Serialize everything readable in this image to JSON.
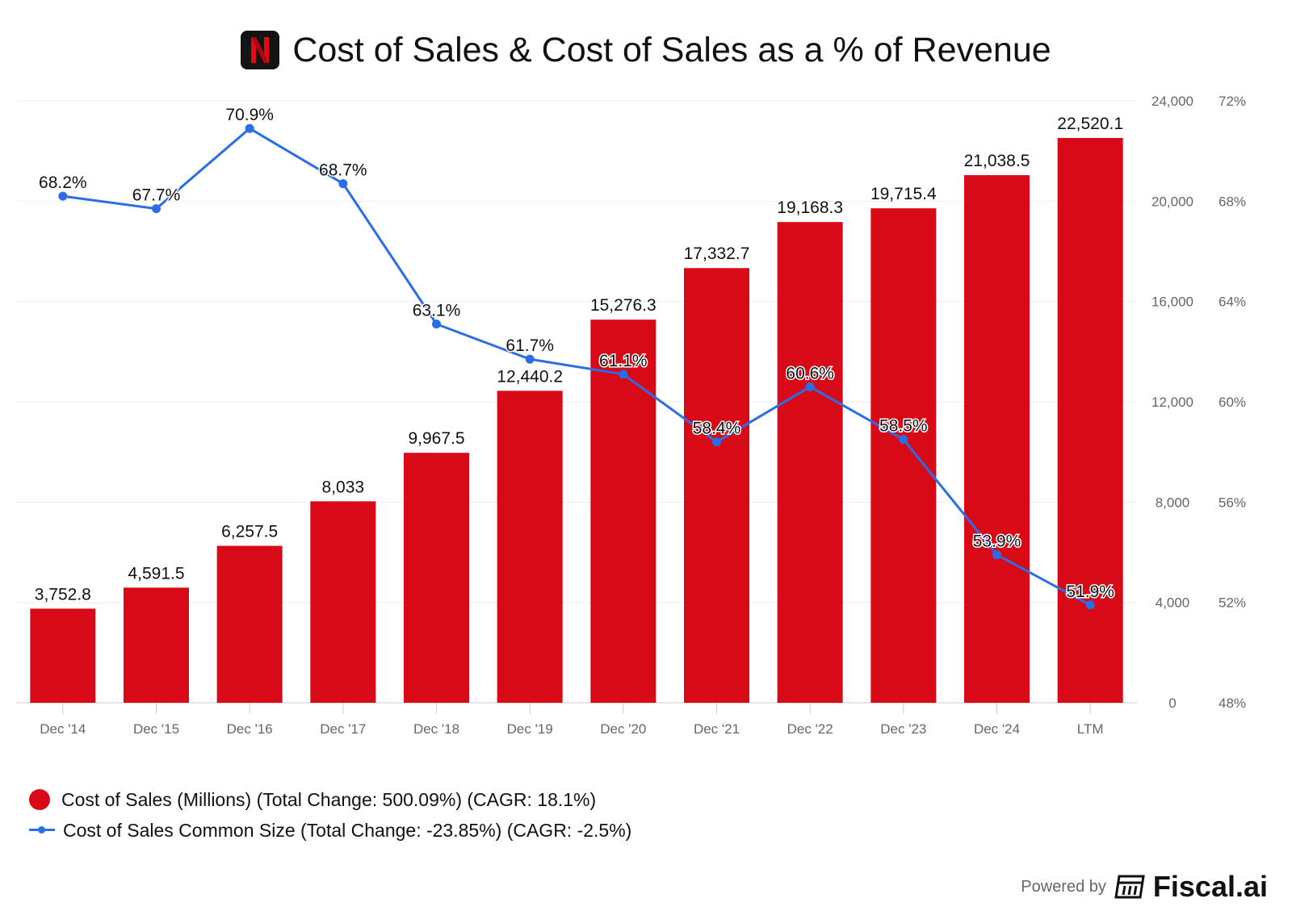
{
  "header": {
    "title": "Cost of Sales & Cost of Sales as a % of Revenue",
    "logo_letter": "N"
  },
  "colors": {
    "bar": "#d90a17",
    "line": "#2b6de6",
    "grid": "#eeeeee",
    "axis": "#cccccc",
    "tick_text": "#666666"
  },
  "chart_data": {
    "type": "bar+line",
    "title": "Cost of Sales & Cost of Sales as a % of Revenue",
    "categories": [
      "Dec '14",
      "Dec '15",
      "Dec '16",
      "Dec '17",
      "Dec '18",
      "Dec '19",
      "Dec '20",
      "Dec '21",
      "Dec '22",
      "Dec '23",
      "Dec '24",
      "LTM"
    ],
    "series": [
      {
        "name": "Cost of Sales (Millions)",
        "type": "bar",
        "axis": "left",
        "values": [
          3752.8,
          4591.5,
          6257.5,
          8033,
          9967.5,
          12440.2,
          15276.3,
          17332.7,
          19168.3,
          19715.4,
          21038.5,
          22520.1
        ],
        "labels": [
          "3,752.8",
          "4,591.5",
          "6,257.5",
          "8,033",
          "9,967.5",
          "12,440.2",
          "15,276.3",
          "17,332.7",
          "19,168.3",
          "19,715.4",
          "21,038.5",
          "22,520.1"
        ]
      },
      {
        "name": "Cost of Sales Common Size",
        "type": "line",
        "axis": "right",
        "values": [
          68.2,
          67.7,
          70.9,
          68.7,
          63.1,
          61.7,
          61.1,
          58.4,
          60.6,
          58.5,
          53.9,
          51.9
        ],
        "labels": [
          "68.2%",
          "67.7%",
          "70.9%",
          "68.7%",
          "63.1%",
          "61.7%",
          "61.1%",
          "58.4%",
          "60.6%",
          "58.5%",
          "53.9%",
          "51.9%"
        ]
      }
    ],
    "y_left": {
      "range": [
        0,
        24000
      ],
      "ticks": [
        0,
        4000,
        8000,
        12000,
        16000,
        20000,
        24000
      ],
      "tick_labels": [
        "0",
        "4,000",
        "8,000",
        "12,000",
        "16,000",
        "20,000",
        "24,000"
      ]
    },
    "y_right": {
      "range": [
        48,
        72
      ],
      "ticks": [
        48,
        52,
        56,
        60,
        64,
        68,
        72
      ],
      "tick_labels": [
        "48%",
        "52%",
        "56%",
        "60%",
        "64%",
        "68%",
        "72%"
      ]
    },
    "grid": true,
    "legend_position": "bottom-left"
  },
  "legend": {
    "items": [
      {
        "label": "Cost of Sales (Millions) (Total Change: 500.09%) (CAGR: 18.1%)"
      },
      {
        "label": "Cost of Sales Common Size (Total Change: -23.85%) (CAGR: -2.5%)"
      }
    ]
  },
  "footer": {
    "powered_by": "Powered by",
    "brand": "Fiscal.ai"
  }
}
